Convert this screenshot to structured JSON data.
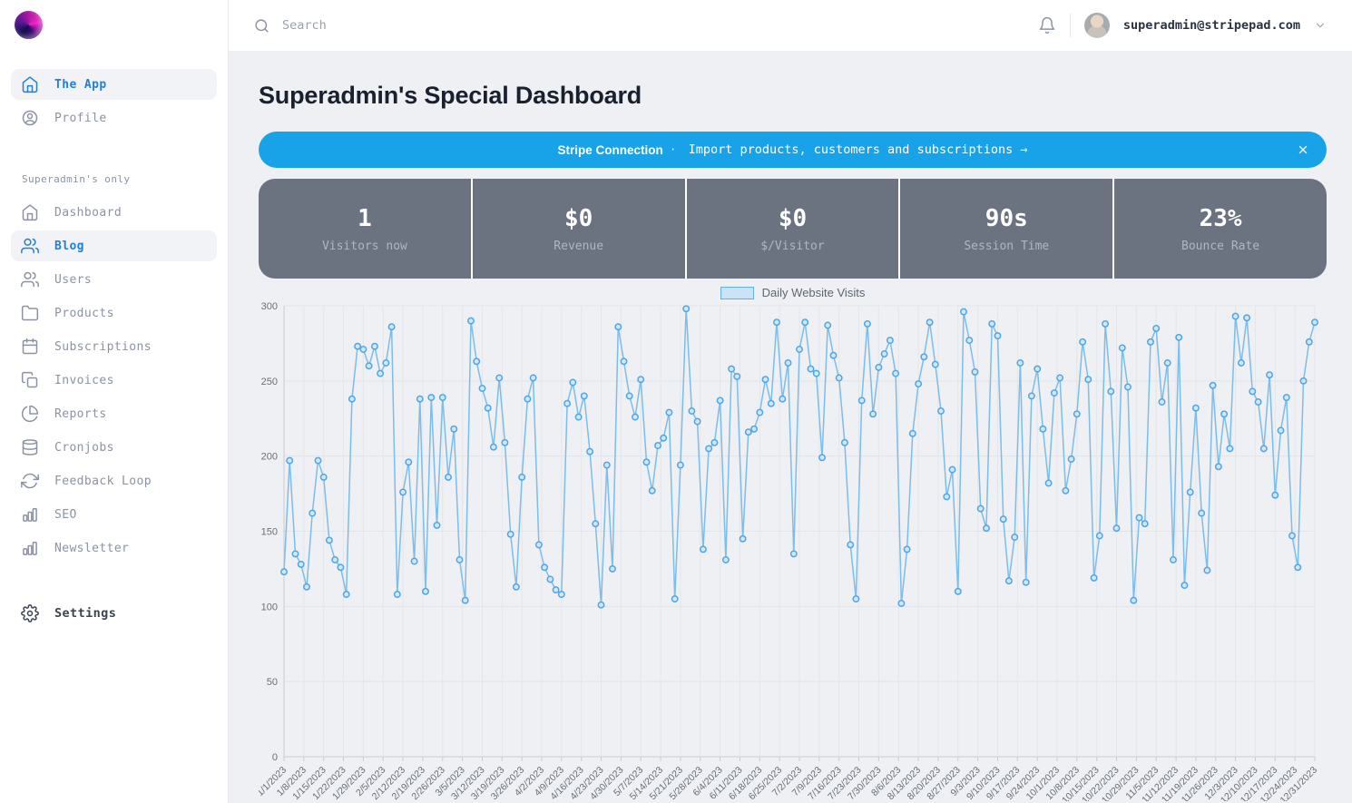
{
  "topbar": {
    "search_placeholder": "Search",
    "user_email": "superadmin@stripepad.com"
  },
  "sidebar": {
    "main_items": [
      {
        "label": "The App",
        "icon": "home",
        "active": true
      },
      {
        "label": "Profile",
        "icon": "user-circle",
        "active": false
      }
    ],
    "section_label": "Superadmin's only",
    "section_items": [
      {
        "label": "Dashboard",
        "icon": "home",
        "active": false
      },
      {
        "label": "Blog",
        "icon": "users",
        "active": true
      },
      {
        "label": "Users",
        "icon": "users",
        "active": false
      },
      {
        "label": "Products",
        "icon": "folder",
        "active": false
      },
      {
        "label": "Subscriptions",
        "icon": "calendar",
        "active": false
      },
      {
        "label": "Invoices",
        "icon": "documents",
        "active": false
      },
      {
        "label": "Reports",
        "icon": "pie-chart",
        "active": false
      },
      {
        "label": "Cronjobs",
        "icon": "database",
        "active": false
      },
      {
        "label": "Feedback Loop",
        "icon": "refresh",
        "active": false
      },
      {
        "label": "SEO",
        "icon": "bar-chart",
        "active": false
      },
      {
        "label": "Newsletter",
        "icon": "bar-chart",
        "active": false
      }
    ],
    "settings_label": "Settings"
  },
  "page": {
    "title": "Superadmin's Special Dashboard"
  },
  "banner": {
    "title": "Stripe Connection",
    "separator": "·",
    "message": "Import products, customers and subscriptions →",
    "bg_color": "#18a3e8"
  },
  "stats": [
    {
      "value": "1",
      "label": "Visitors now"
    },
    {
      "value": "$0",
      "label": "Revenue"
    },
    {
      "value": "$0",
      "label": "$/Visitor"
    },
    {
      "value": "90s",
      "label": "Session Time"
    },
    {
      "value": "23%",
      "label": "Bounce Rate"
    }
  ],
  "chart_data": {
    "type": "line",
    "legend": "Daily Website Visits",
    "legend_position": "top",
    "grid": true,
    "ylim": [
      0,
      300
    ],
    "ytick_step": 50,
    "line_color": "#7bbdec",
    "marker_stroke": "#4fa5e5",
    "marker_fill": "#cfe8fa",
    "x_tick_labels": [
      "1/1/2023",
      "1/8/2023",
      "1/15/2023",
      "1/22/2023",
      "1/29/2023",
      "2/5/2023",
      "2/12/2023",
      "2/19/2023",
      "2/26/2023",
      "3/5/2023",
      "3/12/2023",
      "3/19/2023",
      "3/26/2023",
      "4/2/2023",
      "4/9/2023",
      "4/16/2023",
      "4/23/2023",
      "4/30/2023",
      "5/7/2023",
      "5/14/2023",
      "5/21/2023",
      "5/28/2023",
      "6/4/2023",
      "6/11/2023",
      "6/18/2023",
      "6/25/2023",
      "7/2/2023",
      "7/9/2023",
      "7/16/2023",
      "7/23/2023",
      "7/30/2023",
      "8/6/2023",
      "8/13/2023",
      "8/20/2023",
      "8/27/2023",
      "9/3/2023",
      "9/10/2023",
      "9/17/2023",
      "9/24/2023",
      "10/1/2023",
      "10/8/2023",
      "10/15/2023",
      "10/22/2023",
      "10/29/2023",
      "11/5/2023",
      "11/12/2023",
      "11/19/2023",
      "11/26/2023",
      "12/3/2023",
      "12/10/2023",
      "12/17/2023",
      "12/24/2023",
      "12/31/2023"
    ],
    "values": [
      123,
      197,
      135,
      128,
      113,
      162,
      197,
      186,
      144,
      131,
      126,
      108,
      238,
      273,
      271,
      260,
      273,
      255,
      262,
      286,
      108,
      176,
      196,
      130,
      238,
      110,
      239,
      154,
      239,
      186,
      218,
      131,
      104,
      290,
      263,
      245,
      232,
      206,
      252,
      209,
      148,
      113,
      186,
      238,
      252,
      141,
      126,
      118,
      111,
      108,
      235,
      249,
      226,
      240,
      203,
      155,
      101,
      194,
      125,
      286,
      263,
      240,
      226,
      251,
      196,
      177,
      207,
      212,
      229,
      105,
      194,
      298,
      230,
      223,
      138,
      205,
      209,
      237,
      131,
      258,
      253,
      145,
      216,
      218,
      229,
      251,
      235,
      289,
      238,
      262,
      135,
      271,
      289,
      258,
      255,
      199,
      287,
      267,
      252,
      209,
      141,
      105,
      237,
      288,
      228,
      259,
      268,
      277,
      255,
      102,
      138,
      215,
      248,
      266,
      289,
      261,
      230,
      173,
      191,
      110,
      296,
      277,
      256,
      165,
      152,
      288,
      280,
      158,
      117,
      146,
      262,
      116,
      240,
      258,
      218,
      182,
      242,
      252,
      177,
      198,
      228,
      276,
      251,
      119,
      147,
      288,
      243,
      152,
      272,
      246,
      104,
      159,
      155,
      276,
      285,
      236,
      262,
      131,
      279,
      114,
      176,
      232,
      162,
      124,
      247,
      193,
      228,
      205,
      293,
      262,
      292,
      243,
      236,
      205,
      254,
      174,
      217,
      239,
      147,
      126,
      250,
      276,
      289
    ]
  }
}
